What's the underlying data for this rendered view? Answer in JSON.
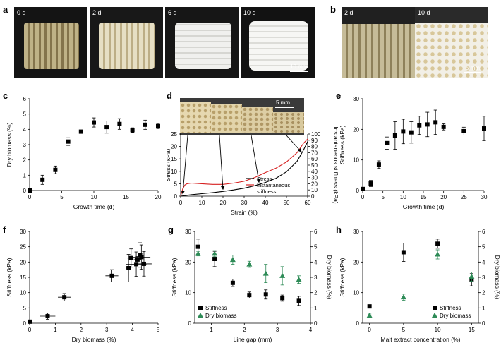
{
  "panel_labels": {
    "a": "a",
    "b": "b",
    "c": "c",
    "d": "d",
    "e": "e",
    "f": "f",
    "g": "g",
    "h": "h"
  },
  "photos_a": {
    "tags": [
      "0 d",
      "2 d",
      "6 d",
      "10 d"
    ],
    "scale": "10 mm",
    "colors": [
      "#c9bb8e",
      "#e3dcc0",
      "#eeeeec",
      "#f4f4f2"
    ]
  },
  "photos_b": {
    "tags": [
      "2 d",
      "10 d"
    ],
    "scale": "5 mm"
  },
  "photo_d": {
    "scale": "5 mm"
  },
  "chart_data": [
    {
      "id": "c",
      "type": "scatter",
      "xlabel": "Growth time (d)",
      "ylabel": "Dry biomass (%)",
      "xlim": [
        0,
        20
      ],
      "ylim": [
        0,
        6
      ],
      "xticks": [
        0,
        5,
        10,
        15,
        20
      ],
      "yticks": [
        0,
        1,
        2,
        3,
        4,
        5,
        6
      ],
      "series": [
        {
          "marker": "square",
          "color": "#000000",
          "x": [
            0,
            2,
            4,
            6,
            8,
            10,
            12,
            14,
            16,
            18,
            20
          ],
          "y": [
            0.0,
            0.7,
            1.35,
            3.2,
            3.85,
            4.45,
            4.15,
            4.35,
            3.95,
            4.3,
            4.2
          ],
          "err": [
            0.05,
            0.3,
            0.25,
            0.25,
            0.1,
            0.3,
            0.4,
            0.35,
            0.15,
            0.3,
            0.15
          ]
        }
      ]
    },
    {
      "id": "d",
      "type": "line",
      "xlabel": "Strain (%)",
      "ylabel": "Stress (kPa)",
      "y2label": "Instantaneous stiffness (kPa)",
      "xlim": [
        0,
        60
      ],
      "ylim": [
        0,
        25
      ],
      "y2lim": [
        0,
        100
      ],
      "xticks": [
        0,
        10,
        20,
        30,
        40,
        50,
        60
      ],
      "yticks": [
        0,
        5,
        10,
        15,
        20,
        25
      ],
      "y2ticks": [
        0,
        10,
        20,
        30,
        40,
        50,
        60,
        70,
        80,
        90,
        100
      ],
      "legend": [
        "Stress",
        "Instantaneous\nstiffness"
      ],
      "legend_position": "bottom-right",
      "series": [
        {
          "name": "Stress",
          "color": "#000000",
          "axis": "y",
          "x": [
            0,
            5,
            10,
            15,
            20,
            25,
            30,
            35,
            40,
            45,
            50,
            55,
            58,
            60
          ],
          "y": [
            0,
            0.6,
            1.0,
            1.4,
            1.9,
            2.5,
            3.2,
            4.2,
            5.5,
            7.2,
            9.8,
            14.0,
            18.5,
            22
          ]
        },
        {
          "name": "Instantaneous stiffness",
          "color": "#d62020",
          "axis": "y2",
          "x": [
            0,
            1,
            2,
            3,
            5,
            10,
            15,
            20,
            25,
            30,
            35,
            40,
            45,
            50,
            55,
            58,
            60
          ],
          "y": [
            0,
            12,
            18,
            20,
            21,
            20,
            19,
            19,
            21,
            24,
            30,
            38,
            45,
            55,
            70,
            85,
            92
          ]
        }
      ],
      "arrow_targets_x": [
        1,
        20,
        37,
        57
      ]
    },
    {
      "id": "e",
      "type": "scatter",
      "xlabel": "Growth time (d)",
      "ylabel": "Stiffness (kPa)",
      "xlim": [
        0,
        30
      ],
      "ylim": [
        0,
        30
      ],
      "xticks": [
        0,
        5,
        10,
        15,
        20,
        25,
        30
      ],
      "yticks": [
        0,
        10,
        20,
        30
      ],
      "series": [
        {
          "marker": "square",
          "color": "#000000",
          "x": [
            0,
            2,
            4,
            6,
            8,
            10,
            12,
            14,
            16,
            18,
            20,
            25,
            30
          ],
          "y": [
            0.5,
            2.3,
            8.5,
            15.5,
            18.0,
            19.3,
            19.0,
            21.3,
            21.6,
            22.3,
            20.8,
            19.4,
            20.3
          ],
          "err": [
            0.3,
            1.0,
            1.2,
            2.0,
            4.5,
            4.0,
            3.5,
            3.0,
            4.0,
            4.0,
            1.0,
            1.3,
            4.0
          ]
        }
      ]
    },
    {
      "id": "f",
      "type": "scatter",
      "xlabel": "Dry biomass (%)",
      "ylabel": "Stiffness (kPa)",
      "xlim": [
        0,
        5
      ],
      "ylim": [
        0,
        30
      ],
      "xticks": [
        0,
        1,
        2,
        3,
        4,
        5
      ],
      "yticks": [
        0,
        5,
        10,
        15,
        20,
        25,
        30
      ],
      "series": [
        {
          "marker": "square",
          "color": "#000000",
          "x": [
            0.0,
            0.7,
            1.35,
            3.2,
            3.85,
            3.95,
            4.15,
            4.2,
            4.3,
            4.35,
            4.45
          ],
          "y": [
            0.5,
            2.3,
            8.5,
            15.5,
            18.0,
            21.3,
            19.3,
            20.8,
            22.3,
            21.6,
            19.4
          ],
          "err": [
            0.3,
            1.0,
            1.2,
            2.0,
            4.5,
            3.0,
            4.0,
            1.0,
            4.0,
            4.0,
            4.0
          ],
          "xerr": [
            0.05,
            0.3,
            0.25,
            0.25,
            0.1,
            0.15,
            0.4,
            0.15,
            0.3,
            0.35,
            0.3
          ]
        }
      ]
    },
    {
      "id": "g",
      "type": "scatter",
      "xlabel": "Line gap (mm)",
      "ylabel": "Stiffness (kPa)",
      "y2label": "Dry biomass (%)",
      "xlim": [
        0.5,
        4
      ],
      "ylim": [
        0,
        30
      ],
      "y2lim": [
        0,
        6
      ],
      "xticks": [
        1,
        2,
        3,
        4
      ],
      "yticks": [
        0,
        10,
        20,
        30
      ],
      "y2ticks": [
        0,
        1,
        2,
        3,
        4,
        5,
        6
      ],
      "legend_position": "bottom-left",
      "series": [
        {
          "name": "Stiffness",
          "marker": "square",
          "color": "#000000",
          "axis": "y",
          "x": [
            0.6,
            1.1,
            1.65,
            2.15,
            2.65,
            3.15,
            3.65
          ],
          "y": [
            25.0,
            21.0,
            13.2,
            9.2,
            9.4,
            8.2,
            7.3
          ],
          "err": [
            2.5,
            2.5,
            1.2,
            1.0,
            1.5,
            1.0,
            1.5
          ]
        },
        {
          "name": "Dry biomass",
          "marker": "triangle",
          "color": "#2e8b57",
          "axis": "y2",
          "x": [
            0.6,
            1.1,
            1.65,
            2.15,
            2.65,
            3.15,
            3.65
          ],
          "y": [
            4.55,
            4.55,
            4.15,
            3.85,
            3.25,
            3.1,
            2.85
          ],
          "err": [
            0.15,
            0.2,
            0.3,
            0.2,
            0.6,
            0.6,
            0.25
          ]
        }
      ]
    },
    {
      "id": "h",
      "type": "scatter",
      "xlabel": "Malt extract concentration (%)",
      "ylabel": "Stiffness (kPa)",
      "y2label": "Dry biomass (%)",
      "xlim": [
        -1,
        16
      ],
      "ylim": [
        0,
        30
      ],
      "y2lim": [
        0,
        6
      ],
      "xticks": [
        0,
        5,
        10,
        15
      ],
      "yticks": [
        0,
        10,
        20,
        30
      ],
      "y2ticks": [
        0,
        1,
        2,
        3,
        4,
        5,
        6
      ],
      "legend_position": "bottom-right",
      "series": [
        {
          "name": "Stiffness",
          "marker": "square",
          "color": "#000000",
          "axis": "y",
          "x": [
            0,
            5,
            10,
            15
          ],
          "y": [
            5.5,
            23.2,
            26.0,
            14.2
          ],
          "err": [
            0.3,
            3.0,
            1.5,
            2.0
          ]
        },
        {
          "name": "Dry biomass",
          "marker": "triangle",
          "color": "#2e8b57",
          "axis": "y2",
          "x": [
            0,
            5,
            10,
            15
          ],
          "y": [
            0.5,
            1.7,
            4.5,
            3.05
          ],
          "err": [
            0.1,
            0.2,
            0.3,
            0.3
          ]
        }
      ]
    }
  ]
}
